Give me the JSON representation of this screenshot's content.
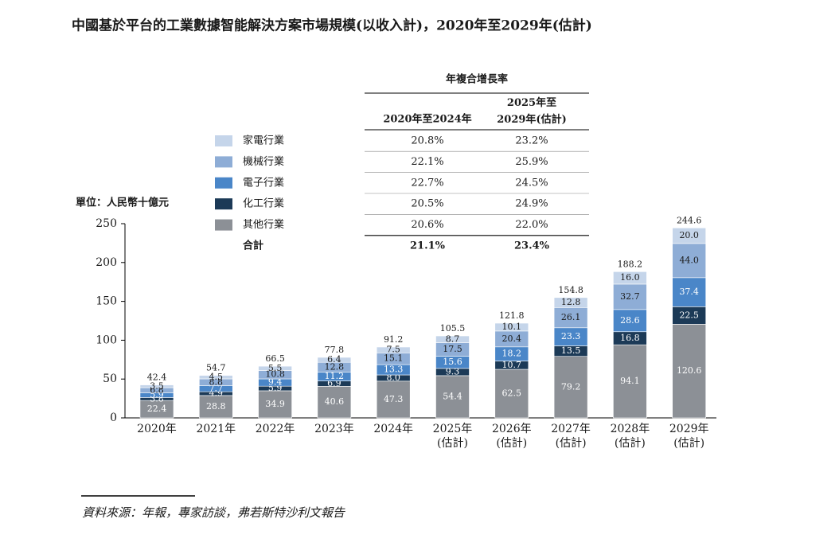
{
  "chart_data": {
    "type": "bar",
    "stacked": true,
    "title": "中國基於平台的工業數據智能解決方案市場規模(以收入計)，2020年至2029年(估計)",
    "y_label": "單位：人民幣十億元",
    "source": "資料來源：年報，專家訪談，弗若斯特沙利文報告",
    "categories": [
      "2020年",
      "2021年",
      "2022年",
      "2023年",
      "2024年",
      "2025年(估計)",
      "2026年(估計)",
      "2027年(估計)",
      "2028年(估計)",
      "2029年(估計)"
    ],
    "ylim": [
      0,
      250
    ],
    "yticks": [
      0,
      50,
      100,
      150,
      200,
      250
    ],
    "series": [
      {
        "name": "其他行業",
        "color": "#8c9096",
        "label_color": "#ffffff",
        "values": [
          22.4,
          28.8,
          34.9,
          40.6,
          47.3,
          54.4,
          62.5,
          79.2,
          94.1,
          120.6
        ],
        "value_labels": [
          "22.4",
          "28.8",
          "34.9",
          "40.6",
          "47.3",
          "54.4",
          "62.5",
          "79.2",
          "94.1",
          "120.6"
        ],
        "cagr": [
          "20.6%",
          "22.0%"
        ]
      },
      {
        "name": "化工行業",
        "color": "#1c3a57",
        "label_color": "#ffffff",
        "values": [
          3.8,
          4.9,
          5.9,
          6.9,
          8.0,
          9.3,
          10.7,
          13.5,
          16.8,
          22.5
        ],
        "value_labels": [
          "3.8",
          "4.9",
          "5.9",
          "6.9",
          "8.0",
          "9.3",
          "10.7",
          "13.5",
          "16.8",
          "22.5"
        ],
        "cagr": [
          "20.5%",
          "24.9%"
        ]
      },
      {
        "name": "電子行業",
        "color": "#4a86c8",
        "label_color": "#ffffff",
        "values": [
          5.9,
          7.7,
          9.4,
          11.2,
          13.3,
          15.6,
          18.2,
          23.3,
          28.6,
          37.4
        ],
        "value_labels": [
          "5.9",
          "7.7",
          "9.4",
          "11.2",
          "13.3",
          "15.6",
          "18.2",
          "23.3",
          "28.6",
          "37.4"
        ],
        "cagr": [
          "22.7%",
          "24.5%"
        ]
      },
      {
        "name": "機械行業",
        "color": "#8eadd6",
        "label_color": "#1a1a1a",
        "values": [
          6.8,
          8.8,
          10.8,
          12.8,
          15.1,
          17.5,
          20.4,
          26.1,
          32.7,
          44.0
        ],
        "value_labels": [
          "6.8",
          "8.8",
          "10.8",
          "12.8",
          "15.1",
          "17.5",
          "20.4",
          "26.1",
          "32.7",
          "44.0"
        ],
        "cagr": [
          "22.1%",
          "25.9%"
        ]
      },
      {
        "name": "家電行業",
        "color": "#c5d5ea",
        "label_color": "#1a1a1a",
        "values": [
          3.5,
          4.5,
          5.5,
          6.4,
          7.5,
          8.7,
          10.1,
          12.8,
          16.0,
          20.0
        ],
        "value_labels": [
          "3.5",
          "4.5",
          "5.5",
          "6.4",
          "7.5",
          "8.7",
          "10.1",
          "12.8",
          "16.0",
          "20.0"
        ],
        "cagr": [
          "20.8%",
          "23.2%"
        ]
      }
    ],
    "totals": [
      42.4,
      54.7,
      66.5,
      77.8,
      91.2,
      105.5,
      121.8,
      154.8,
      188.2,
      244.6
    ],
    "cagr_table": {
      "title": "年複合增長率",
      "columns": [
        "2020年至2024年",
        "2025年至2029年(估計)"
      ],
      "total_label": "合計",
      "total": [
        "21.1%",
        "23.4%"
      ]
    }
  }
}
